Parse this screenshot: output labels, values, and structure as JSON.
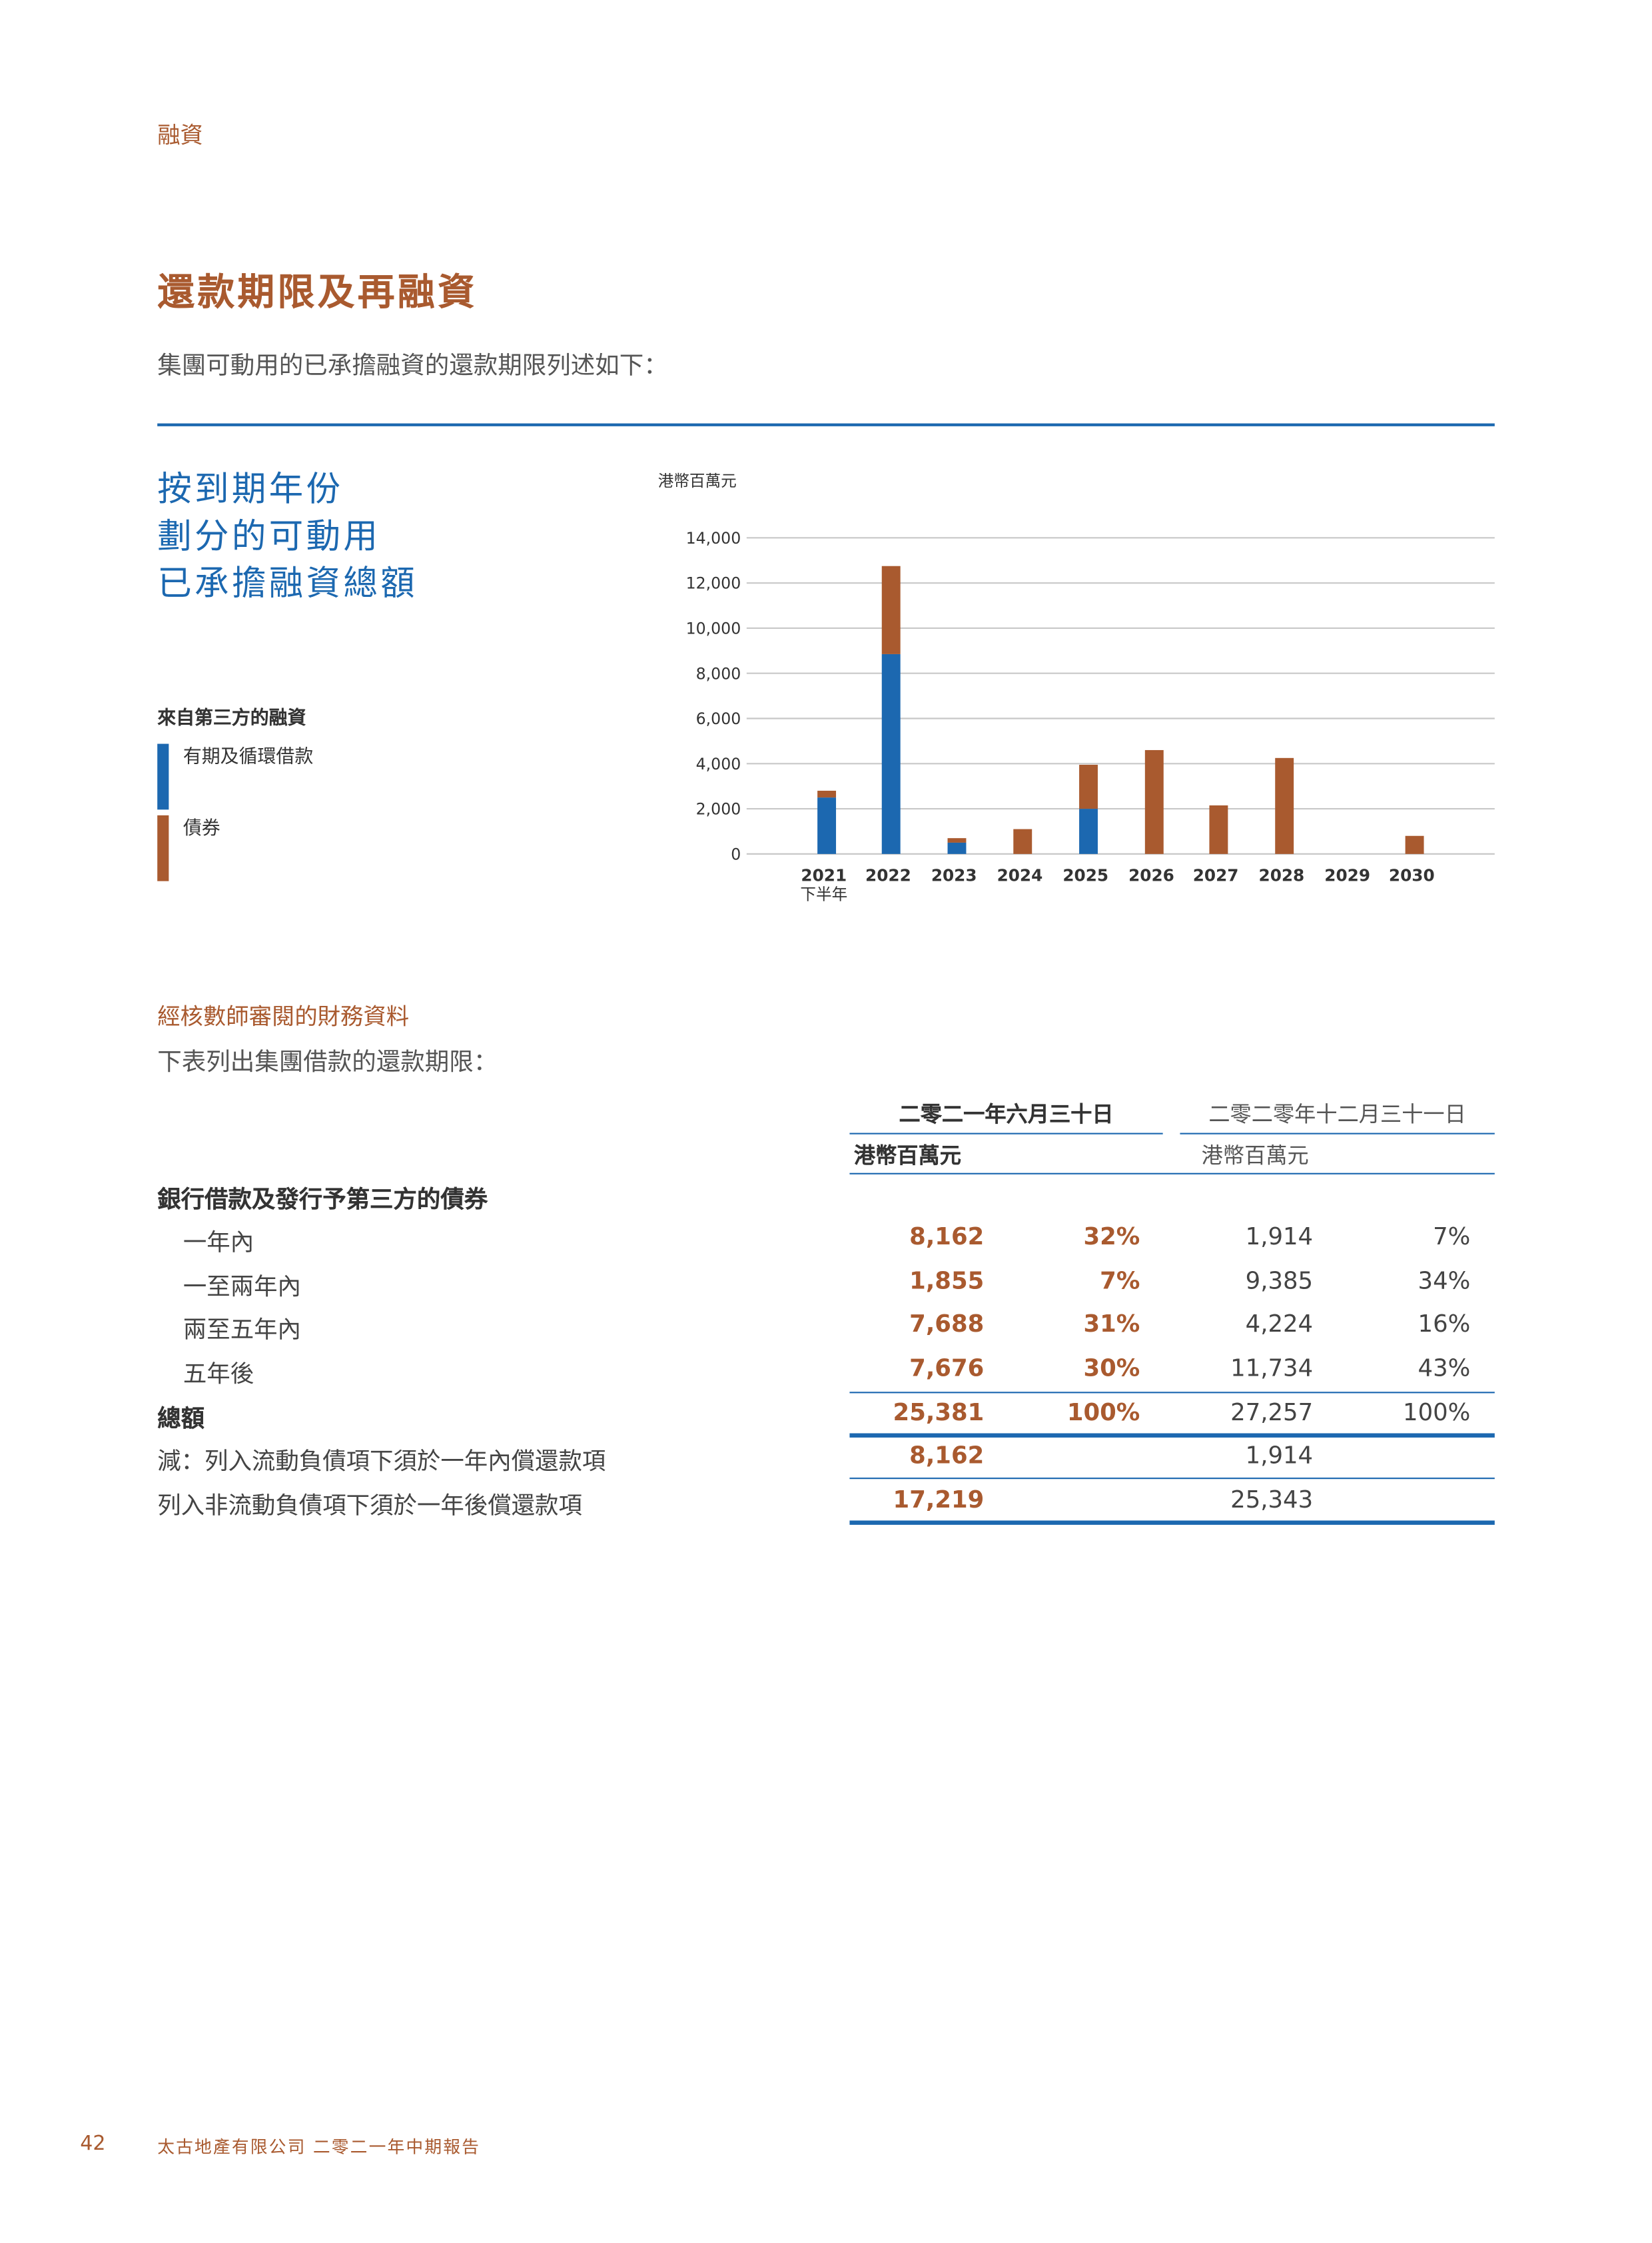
{
  "header": {
    "section": "融資"
  },
  "title": "還款期限及再融資",
  "intro": "集團可動用的已承擔融資的還款期限列述如下：",
  "chart_heading": [
    "按到期年份",
    "劃分的可動用",
    "已承擔融資總額"
  ],
  "legend": {
    "title": "來自第三方的融資",
    "items": [
      {
        "label": "有期及循環借款",
        "color": "#1c68b0"
      },
      {
        "label": "債券",
        "color": "#a95a2f"
      }
    ]
  },
  "chart_data": {
    "type": "bar",
    "stacked": true,
    "ylabel": "港幣百萬元",
    "ylim": [
      0,
      14000
    ],
    "yticks": [
      "0",
      "2,000",
      "4,000",
      "6,000",
      "8,000",
      "10,000",
      "12,000",
      "14,000"
    ],
    "categories": [
      "2021",
      "2022",
      "2023",
      "2024",
      "2025",
      "2026",
      "2027",
      "2028",
      "2029",
      "2030"
    ],
    "category_sublabels": {
      "2021": "下半年"
    },
    "grid": true,
    "series": [
      {
        "name": "有期及循環借款",
        "color": "#1c68b0",
        "values": [
          2500,
          8850,
          500,
          0,
          2000,
          0,
          0,
          0,
          0,
          0
        ]
      },
      {
        "name": "債券",
        "color": "#a95a2f",
        "values": [
          300,
          3900,
          200,
          1100,
          1950,
          4600,
          2150,
          4250,
          0,
          800
        ]
      }
    ]
  },
  "table": {
    "section_title": "經核數師審閱的財務資料",
    "intro": "下表列出集團借款的還款期限：",
    "col_headers": [
      {
        "date": "二零二一年六月三十日",
        "unit": "港幣百萬元"
      },
      {
        "date": "二零二零年十二月三十一日",
        "unit": "港幣百萬元"
      }
    ],
    "group_label": "銀行借款及發行予第三方的債券",
    "rows": [
      {
        "label": "一年內",
        "v1": "8,162",
        "p1": "32%",
        "v2": "1,914",
        "p2": "7%"
      },
      {
        "label": "一至兩年內",
        "v1": "1,855",
        "p1": "7%",
        "v2": "9,385",
        "p2": "34%"
      },
      {
        "label": "兩至五年內",
        "v1": "7,688",
        "p1": "31%",
        "v2": "4,224",
        "p2": "16%"
      },
      {
        "label": "五年後",
        "v1": "7,676",
        "p1": "30%",
        "v2": "11,734",
        "p2": "43%"
      }
    ],
    "total": {
      "label": "總額",
      "v1": "25,381",
      "p1": "100%",
      "v2": "27,257",
      "p2": "100%"
    },
    "current": {
      "label": "減：列入流動負債項下須於一年內償還款項",
      "v1": "8,162",
      "v2": "1,914"
    },
    "noncurrent": {
      "label": "列入非流動負債項下須於一年後償還款項",
      "v1": "17,219",
      "v2": "25,343"
    }
  },
  "footer": {
    "page": "42",
    "text": "太古地產有限公司 二零二一年中期報告"
  }
}
